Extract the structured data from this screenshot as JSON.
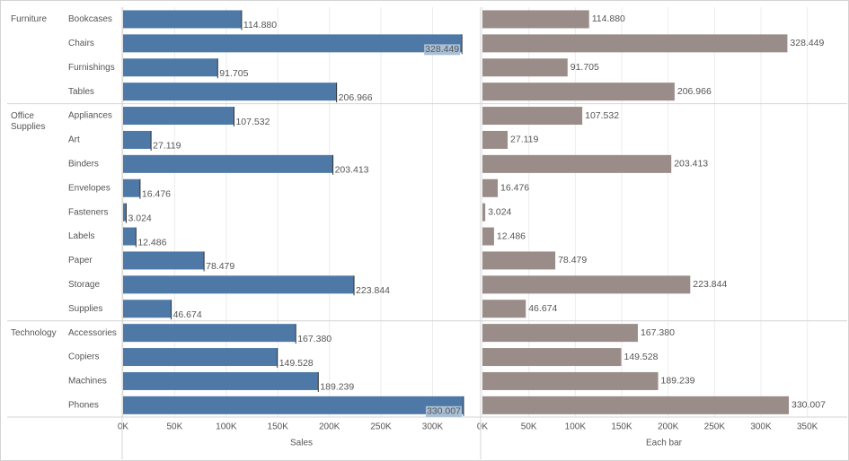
{
  "chart_data": {
    "type": "bar",
    "groups": [
      {
        "name": "Furniture",
        "categories": [
          "Bookcases",
          "Chairs",
          "Furnishings",
          "Tables"
        ]
      },
      {
        "name": "Office Supplies",
        "categories": [
          "Appliances",
          "Art",
          "Binders",
          "Envelopes",
          "Fasteners",
          "Labels",
          "Paper",
          "Storage",
          "Supplies"
        ]
      },
      {
        "name": "Technology",
        "categories": [
          "Accessories",
          "Copiers",
          "Machines",
          "Phones"
        ]
      }
    ],
    "panels": [
      {
        "xlabel": "Sales",
        "color": "#4e79a7",
        "values": [
          114880,
          328449,
          91705,
          206966,
          107532,
          27119,
          203413,
          16476,
          3024,
          12486,
          78479,
          223844,
          46674,
          167380,
          149528,
          189239,
          330007
        ],
        "value_labels": [
          "114.880",
          "328.449",
          "91.705",
          "206.966",
          "107.532",
          "27.119",
          "203.413",
          "16.476",
          "3.024",
          "12.486",
          "78.479",
          "223.844",
          "46.674",
          "167.380",
          "149.528",
          "189.239",
          "330.007"
        ],
        "xlim": [
          0,
          344000
        ],
        "xticks": [
          {
            "value": 0,
            "label": "0K"
          },
          {
            "value": 50000,
            "label": "50K"
          },
          {
            "value": 100000,
            "label": "100K"
          },
          {
            "value": 150000,
            "label": "150K"
          },
          {
            "value": 200000,
            "label": "200K"
          },
          {
            "value": 250000,
            "label": "250K"
          },
          {
            "value": 300000,
            "label": "300K"
          }
        ],
        "grid": true
      },
      {
        "xlabel": "Each bar",
        "color": "#9a8c89",
        "values": [
          114880,
          328449,
          91705,
          206966,
          107532,
          27119,
          203413,
          16476,
          3024,
          12486,
          78479,
          223844,
          46674,
          167380,
          149528,
          189239,
          330007
        ],
        "value_labels": [
          "114.880",
          "328.449",
          "91.705",
          "206.966",
          "107.532",
          "27.119",
          "203.413",
          "16.476",
          "3.024",
          "12.486",
          "78.479",
          "223.844",
          "46.674",
          "167.380",
          "149.528",
          "189.239",
          "330.007"
        ],
        "xlim": [
          0,
          390000
        ],
        "xticks": [
          {
            "value": 0,
            "label": "0K"
          },
          {
            "value": 50000,
            "label": "50K"
          },
          {
            "value": 100000,
            "label": "100K"
          },
          {
            "value": 150000,
            "label": "150K"
          },
          {
            "value": 200000,
            "label": "200K"
          },
          {
            "value": 250000,
            "label": "250K"
          },
          {
            "value": 300000,
            "label": "300K"
          },
          {
            "value": 350000,
            "label": "350K"
          }
        ],
        "grid": true
      }
    ]
  }
}
